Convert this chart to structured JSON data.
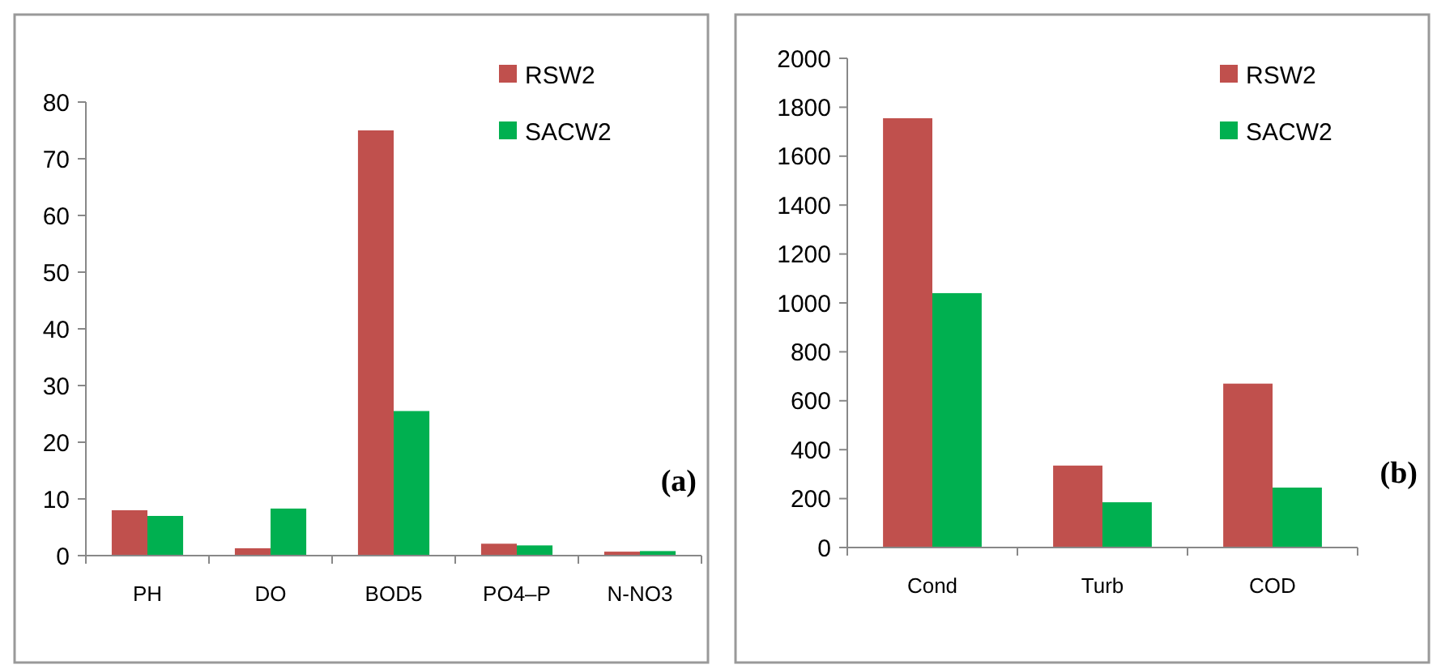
{
  "chart_data": [
    {
      "type": "bar",
      "categories": [
        "PH",
        "DO",
        "BOD5",
        "PO4–P",
        "N-NO3"
      ],
      "series": [
        {
          "name": "RSW2",
          "color": "#c0504d",
          "values": [
            8,
            1.3,
            75,
            2.1,
            0.7
          ]
        },
        {
          "name": "SACW2",
          "color": "#00b050",
          "values": [
            7,
            8.3,
            25.5,
            1.8,
            0.8
          ]
        }
      ],
      "ylim": [
        0,
        80
      ],
      "yticks": [
        0,
        10,
        20,
        30,
        40,
        50,
        60,
        70,
        80
      ],
      "legend": "top right",
      "grid": false,
      "annotations": [
        "(a)"
      ]
    },
    {
      "type": "bar",
      "categories": [
        "Cond",
        "Turb",
        "COD"
      ],
      "series": [
        {
          "name": "RSW2",
          "color": "#c0504d",
          "values": [
            1755,
            335,
            670
          ]
        },
        {
          "name": "SACW2",
          "color": "#00b050",
          "values": [
            1040,
            185,
            245
          ]
        }
      ],
      "ylim": [
        0,
        2000
      ],
      "yticks": [
        0,
        200,
        400,
        600,
        800,
        1000,
        1200,
        1400,
        1600,
        1800,
        2000
      ],
      "legend": "top right",
      "grid": false,
      "annotations": [
        "(b)"
      ]
    }
  ]
}
